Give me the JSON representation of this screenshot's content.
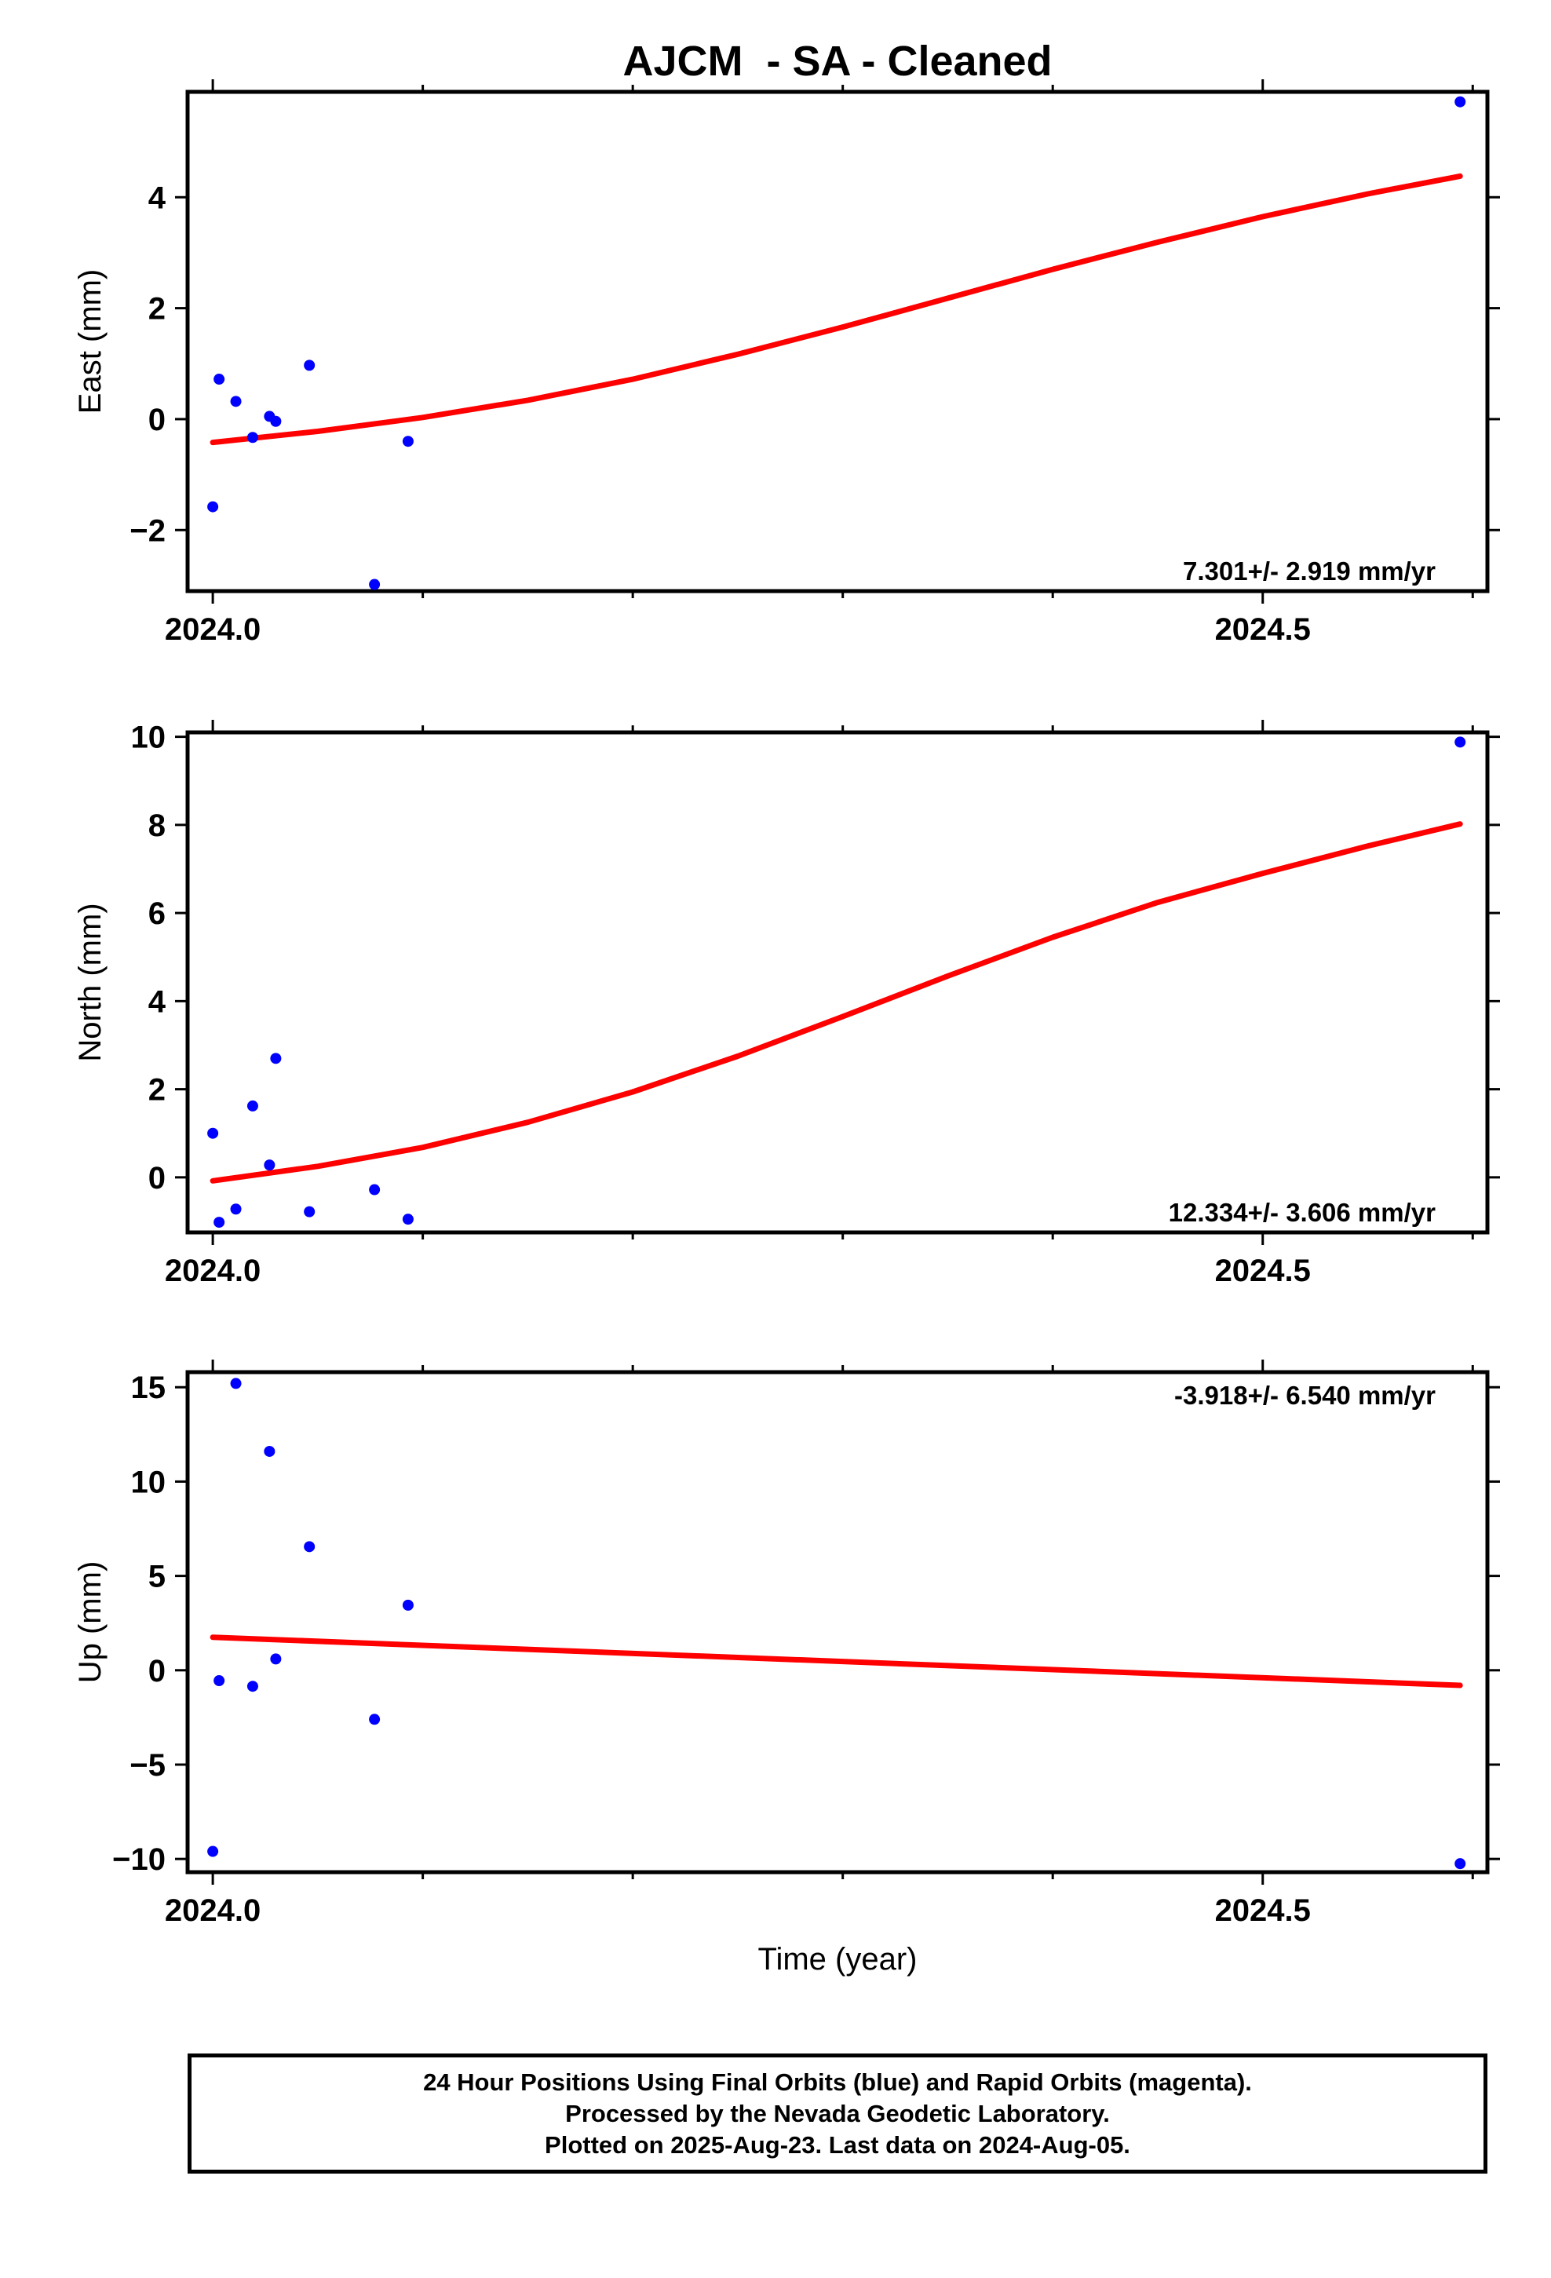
{
  "title": "AJCM  - SA - Cleaned",
  "xlabel": "Time (year)",
  "footer": {
    "line1": "24 Hour Positions Using Final Orbits (blue) and Rapid Orbits (magenta).",
    "line2": "Processed by the Nevada Geodetic Laboratory.",
    "line3": "Plotted on 2025-Aug-23. Last data on 2024-Aug-05."
  },
  "colors": {
    "points": "#0000ff",
    "fit": "#ff0000",
    "axes": "#000000"
  },
  "chart_data": [
    {
      "type": "scatter",
      "panel": "east",
      "ylabel": "East (mm)",
      "xlim": [
        2023.988,
        2024.607
      ],
      "ylim": [
        -3.1,
        5.9
      ],
      "xticks": [
        2024.0,
        2024.5
      ],
      "xtick_labels": [
        "2024.0",
        "2024.5"
      ],
      "xminor_step": 0.1,
      "yticks": [
        -2,
        0,
        2,
        4
      ],
      "ytick_labels": [
        "−2",
        "0",
        "2",
        "4"
      ],
      "rate_label": "7.301+/- 2.919 mm/yr",
      "rate_position": "bottom-right",
      "points": {
        "x": [
          2024.0,
          2024.003,
          2024.011,
          2024.019,
          2024.027,
          2024.03,
          2024.046,
          2024.077,
          2024.093,
          2024.594
        ],
        "y": [
          -1.58,
          0.72,
          0.32,
          -0.33,
          0.05,
          -0.04,
          0.97,
          -2.98,
          -0.4,
          5.72
        ]
      },
      "fit": {
        "x": [
          2024.0,
          2024.05,
          2024.1,
          2024.15,
          2024.2,
          2024.25,
          2024.3,
          2024.35,
          2024.4,
          2024.45,
          2024.5,
          2024.55,
          2024.594
        ],
        "y": [
          -0.42,
          -0.22,
          0.03,
          0.34,
          0.72,
          1.17,
          1.66,
          2.18,
          2.7,
          3.19,
          3.65,
          4.06,
          4.38
        ]
      }
    },
    {
      "type": "scatter",
      "panel": "north",
      "ylabel": "North (mm)",
      "xlim": [
        2023.988,
        2024.607
      ],
      "ylim": [
        -1.25,
        10.1
      ],
      "xticks": [
        2024.0,
        2024.5
      ],
      "xtick_labels": [
        "2024.0",
        "2024.5"
      ],
      "xminor_step": 0.1,
      "yticks": [
        0,
        2,
        4,
        6,
        8,
        10
      ],
      "ytick_labels": [
        "0",
        "2",
        "4",
        "6",
        "8",
        "10"
      ],
      "rate_label": "12.334+/- 3.606 mm/yr",
      "rate_position": "bottom-right",
      "points": {
        "x": [
          2024.0,
          2024.003,
          2024.011,
          2024.019,
          2024.027,
          2024.03,
          2024.046,
          2024.077,
          2024.093,
          2024.594
        ],
        "y": [
          1.0,
          -1.02,
          -0.72,
          1.62,
          0.28,
          2.7,
          -0.78,
          -0.28,
          -0.95,
          9.88
        ]
      },
      "fit": {
        "x": [
          2024.0,
          2024.05,
          2024.1,
          2024.15,
          2024.2,
          2024.25,
          2024.3,
          2024.35,
          2024.4,
          2024.45,
          2024.5,
          2024.55,
          2024.594
        ],
        "y": [
          -0.08,
          0.25,
          0.68,
          1.25,
          1.94,
          2.75,
          3.65,
          4.57,
          5.45,
          6.24,
          6.9,
          7.52,
          8.02
        ]
      }
    },
    {
      "type": "scatter",
      "panel": "up",
      "ylabel": "Up (mm)",
      "xlim": [
        2023.988,
        2024.607
      ],
      "ylim": [
        -10.7,
        15.8
      ],
      "xticks": [
        2024.0,
        2024.5
      ],
      "xtick_labels": [
        "2024.0",
        "2024.5"
      ],
      "xminor_step": 0.1,
      "yticks": [
        -10,
        -5,
        0,
        5,
        10,
        15
      ],
      "ytick_labels": [
        "−10",
        "−5",
        "0",
        "5",
        "10",
        "15"
      ],
      "rate_label": "-3.918+/- 6.540 mm/yr",
      "rate_position": "top-right",
      "points": {
        "x": [
          2024.0,
          2024.003,
          2024.011,
          2024.019,
          2024.027,
          2024.03,
          2024.046,
          2024.077,
          2024.093,
          2024.594
        ],
        "y": [
          -9.6,
          -0.55,
          15.2,
          -0.85,
          11.6,
          0.6,
          6.55,
          -2.6,
          3.45,
          -10.25
        ]
      },
      "fit": {
        "x": [
          2024.0,
          2024.594
        ],
        "y": [
          1.75,
          -0.8
        ]
      }
    }
  ]
}
